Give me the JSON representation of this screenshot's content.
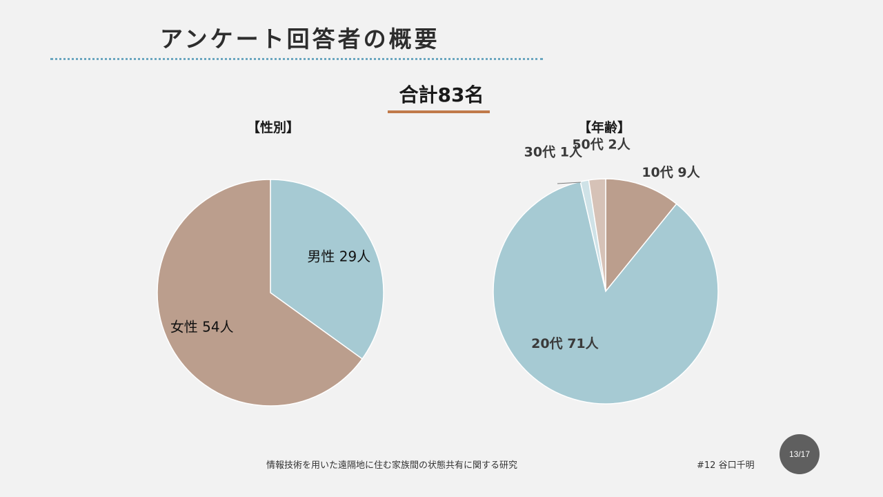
{
  "slide": {
    "title": "アンケート回答者の概要",
    "total": "合計83名",
    "footer_title": "情報技術を用いた遠隔地に住む家族間の状態共有に関する研究",
    "footer_author": "#12 谷口千明",
    "page_number": "13/17"
  },
  "colors": {
    "title_rule": "#6aa6c0",
    "total_rule": "#c07a4a",
    "badge": "#5f5f5f"
  },
  "chart_data": [
    {
      "type": "pie",
      "title": "【性別】",
      "start": "12 o'clock, clockwise",
      "slices": [
        {
          "label": "男性 29人",
          "value": 29,
          "color": "#a6cad3"
        },
        {
          "label": "女性 54人",
          "value": 54,
          "color": "#bb9e8d"
        }
      ]
    },
    {
      "type": "pie",
      "title": "【年齢】",
      "start": "12 o'clock, clockwise",
      "slices": [
        {
          "label": "10代 9人",
          "value": 9,
          "color": "#bb9e8d"
        },
        {
          "label": "20代 71人",
          "value": 71,
          "color": "#a6cad3"
        },
        {
          "label": "30代 1人",
          "value": 1,
          "color": "#cfe2e7"
        },
        {
          "label": "50代 2人",
          "value": 2,
          "color": "#d6c2b7"
        }
      ]
    }
  ]
}
